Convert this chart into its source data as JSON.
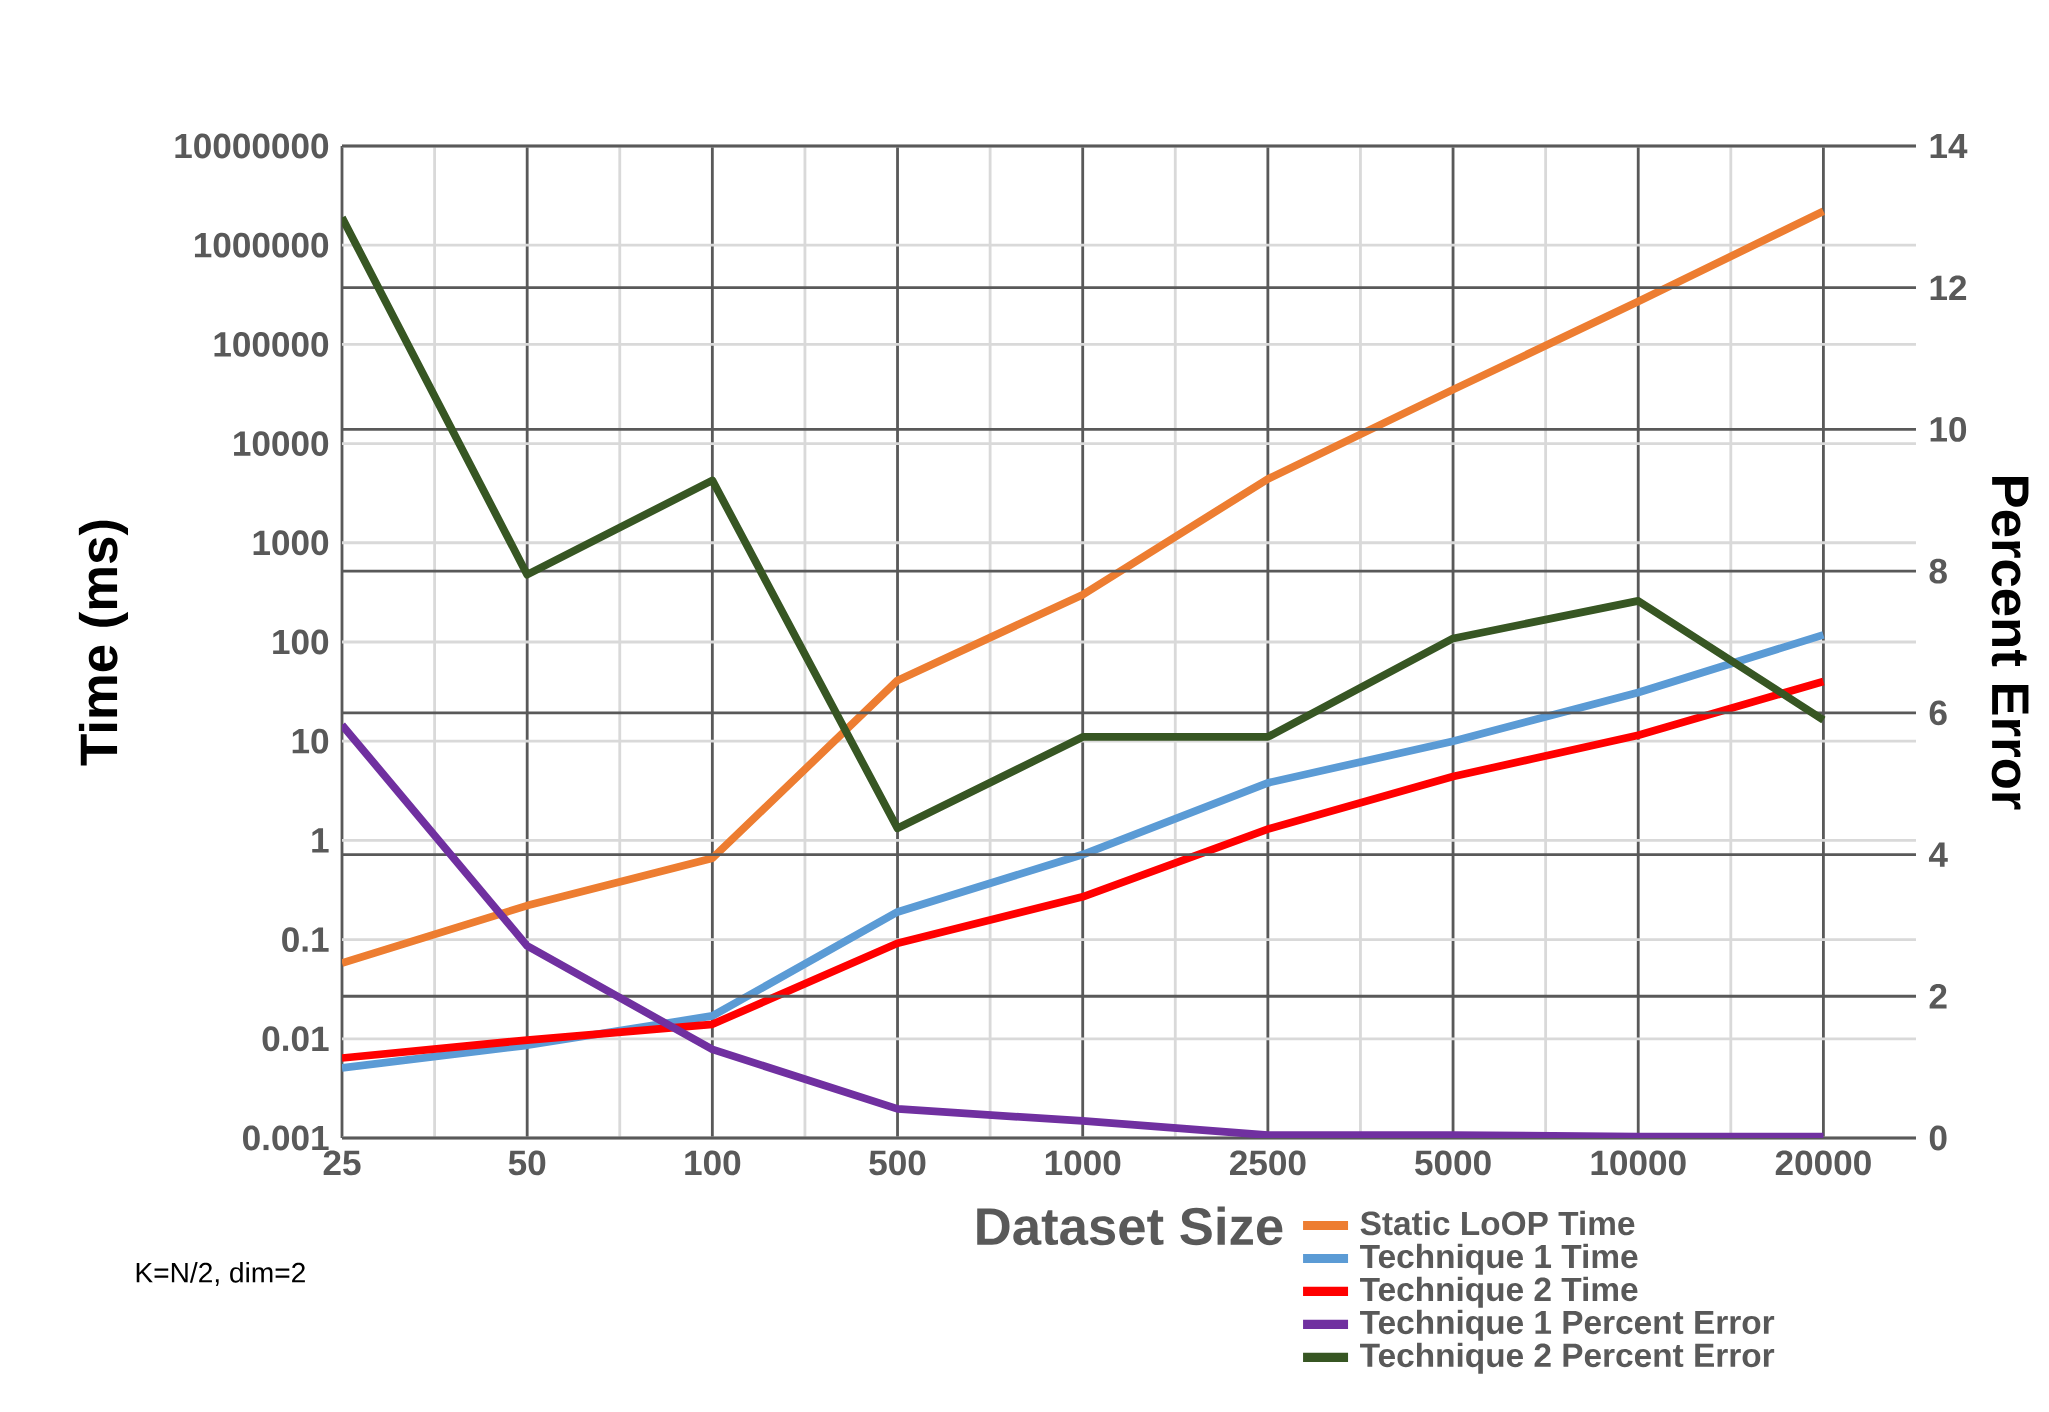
{
  "chart_data": {
    "type": "line",
    "xlabel": "Dataset Size",
    "ylabel": "Time (ms)",
    "y2label": "Percent Error",
    "annotations": [
      "K=N/2, dim=2"
    ],
    "categories": [
      "25",
      "50",
      "100",
      "500",
      "1000",
      "2500",
      "5000",
      "10000",
      "20000"
    ],
    "log": "y",
    "ylim": [
      0.001,
      10000000
    ],
    "yticks": [
      0.001,
      0.01,
      0.1,
      1,
      10,
      100,
      1000,
      10000,
      100000,
      1000000,
      10000000
    ],
    "y2lim": [
      0,
      14
    ],
    "y2ticks": [
      0,
      2,
      4,
      6,
      8,
      10,
      12,
      14
    ],
    "grid": true,
    "legend": "bottom right",
    "series": [
      {
        "name": "Static LoOP Time",
        "color": "#ed7d31",
        "values": [
          0.058,
          0.22,
          0.66,
          41,
          300,
          4400,
          35000,
          270000,
          2200000
        ]
      },
      {
        "name": "Technique 1 Time",
        "color": "#5b9bd5",
        "values": [
          0.0051,
          0.0086,
          0.017,
          0.19,
          0.72,
          3.8,
          10,
          31,
          118
        ]
      },
      {
        "name": "Technique 2 Time",
        "color": "#ff0000",
        "values": [
          0.0064,
          0.0097,
          0.014,
          0.092,
          0.27,
          1.3,
          4.4,
          11.5,
          40
        ]
      },
      {
        "name": "Technique 1 Percent Error",
        "color": "#7030a0",
        "axis": "y2",
        "values": [
          5.83,
          2.71,
          1.25,
          0.41,
          0.24,
          0.04,
          0.04,
          0.02,
          0.02
        ]
      },
      {
        "name": "Technique 2 Percent Error",
        "color": "#375623",
        "axis": "y2",
        "values": [
          12.99,
          7.95,
          9.28,
          4.37,
          5.66,
          5.66,
          7.05,
          7.58,
          5.9
        ]
      }
    ]
  }
}
